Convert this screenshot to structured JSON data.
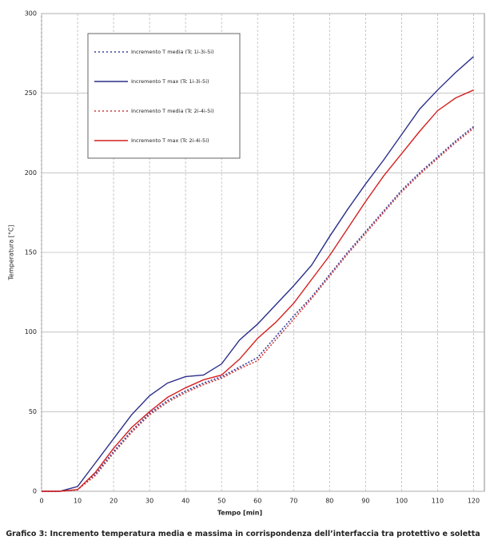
{
  "chart_data": {
    "type": "line",
    "title": "Grafico 3: Incremento temperatura media e massima in corrispondenza dell’interfaccia tra protettivo e soletta",
    "x_label": "Tempo [min]",
    "y_label": "Temperatura [°C]",
    "x": [
      0,
      5,
      10,
      15,
      20,
      25,
      30,
      35,
      40,
      45,
      50,
      55,
      60,
      65,
      70,
      75,
      80,
      85,
      90,
      95,
      100,
      105,
      110,
      115,
      120
    ],
    "series": [
      {
        "name": "Incremento T media (Tc 1i-3i-5i)",
        "color": "#3a3f9a",
        "dashed": true,
        "values": [
          0,
          0,
          1,
          11,
          25,
          38,
          49,
          57,
          63,
          68,
          72,
          78,
          84,
          97,
          110,
          122,
          136,
          150,
          163,
          176,
          189,
          200,
          210,
          220,
          229
        ]
      },
      {
        "name": "Incremento T max (Tc 1i-3i-5i)",
        "color": "#2b2f8a",
        "dashed": false,
        "values": [
          0,
          0,
          3,
          18,
          33,
          48,
          60,
          68,
          72,
          73,
          80,
          95,
          105,
          117,
          129,
          142,
          160,
          177,
          193,
          208,
          224,
          240,
          252,
          263,
          273
        ]
      },
      {
        "name": "Incremento T media (Tc 2i-4i-5i)",
        "color": "#d23b3b",
        "dashed": true,
        "values": [
          0,
          0,
          1,
          10,
          24,
          37,
          48,
          56,
          62,
          67,
          71,
          77,
          82,
          95,
          108,
          121,
          135,
          149,
          162,
          175,
          188,
          199,
          209,
          219,
          228
        ]
      },
      {
        "name": "Incremento T max (Tc 2i-4i-5i)",
        "color": "#d42020",
        "dashed": false,
        "values": [
          0,
          0,
          1,
          12,
          27,
          40,
          50,
          59,
          65,
          70,
          73,
          83,
          96,
          106,
          118,
          133,
          148,
          165,
          182,
          198,
          212,
          226,
          239,
          247,
          252
        ]
      }
    ],
    "xlim": [
      0,
      123
    ],
    "ylim": [
      0,
      300
    ],
    "xticks": [
      0,
      10,
      20,
      30,
      40,
      50,
      60,
      70,
      80,
      90,
      100,
      110,
      120
    ],
    "yticks": [
      0,
      50,
      100,
      150,
      200,
      250,
      300
    ],
    "grid": true
  }
}
